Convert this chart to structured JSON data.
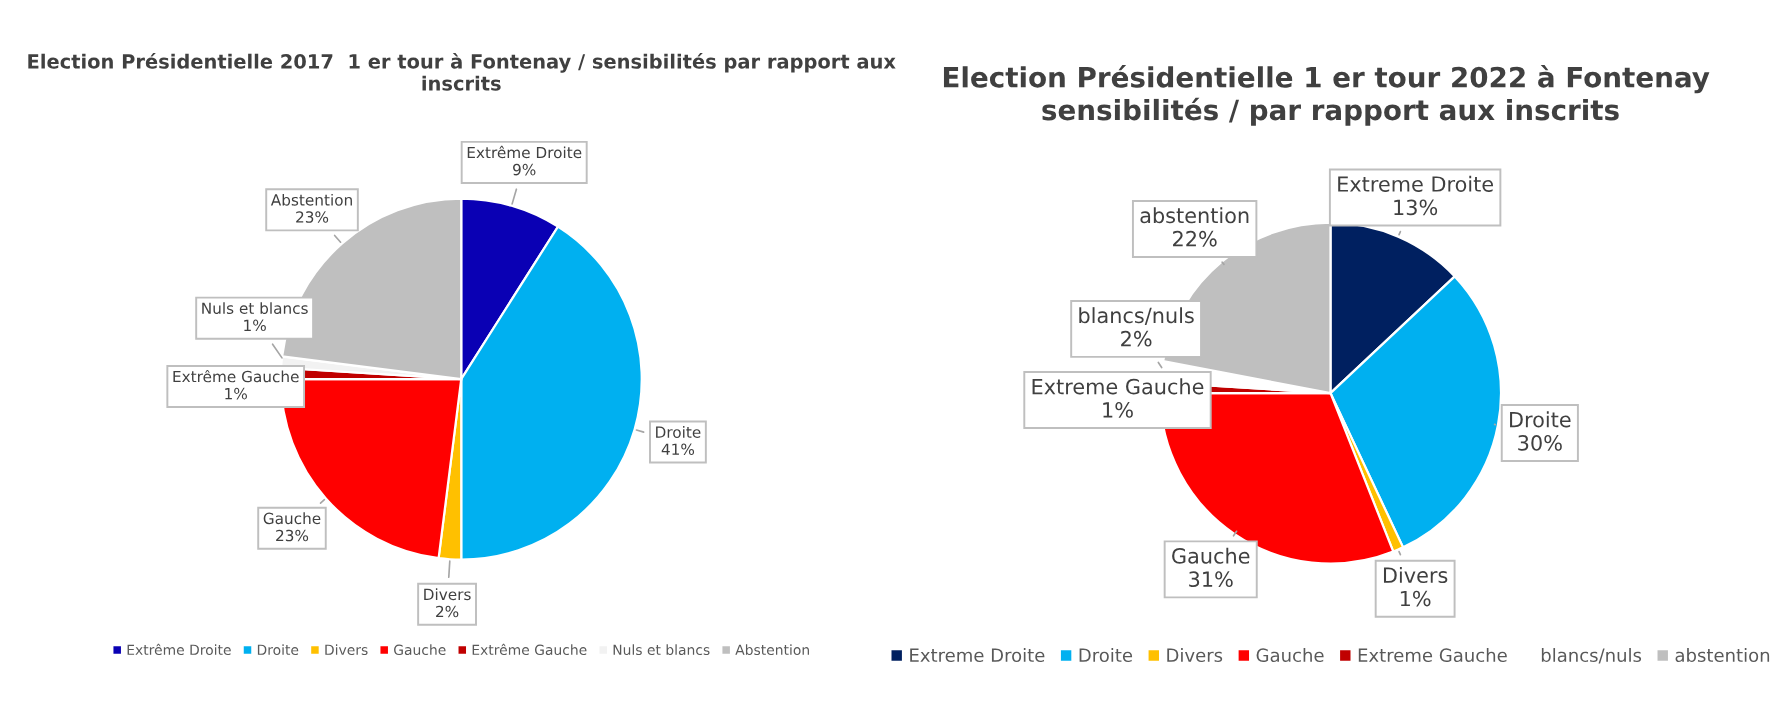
{
  "chart_data": [
    {
      "type": "pie",
      "title": "Election Présidentielle 2017  1 er tour à Fontenay / sensibilités par rapport aux inscrits",
      "categories": [
        "Extrême Droite",
        "Droite",
        "Divers",
        "Gauche",
        "Extrême Gauche",
        "Nuls et blancs",
        "Abstention"
      ],
      "values": [
        9,
        41,
        2,
        23,
        1,
        1,
        23
      ],
      "value_labels": [
        "9%",
        "41%",
        "2%",
        "23%",
        "1%",
        "1%",
        "23%"
      ],
      "colors": [
        "#0a00b4",
        "#00b0f0",
        "#ffc000",
        "#ff0000",
        "#c00000",
        "#f2f2f2",
        "#bfbfbf"
      ],
      "legend": "bottom"
    },
    {
      "type": "pie",
      "title": "Election Présidentielle 1 er tour 2022 à Fontenay  sensibilités / par rapport aux inscrits",
      "categories": [
        "Extreme Droite",
        "Droite",
        "Divers",
        "Gauche",
        "Extreme Gauche",
        "blancs/nuls",
        "abstention"
      ],
      "values": [
        13,
        30,
        1,
        31,
        1,
        2,
        22
      ],
      "value_labels": [
        "13%",
        "30%",
        "1%",
        "31%",
        "1%",
        "2%",
        "22%"
      ],
      "colors": [
        "#002060",
        "#00b0f0",
        "#ffc000",
        "#ff0000",
        "#c00000",
        "#ffffff",
        "#bfbfbf"
      ],
      "legend": "bottom"
    }
  ]
}
